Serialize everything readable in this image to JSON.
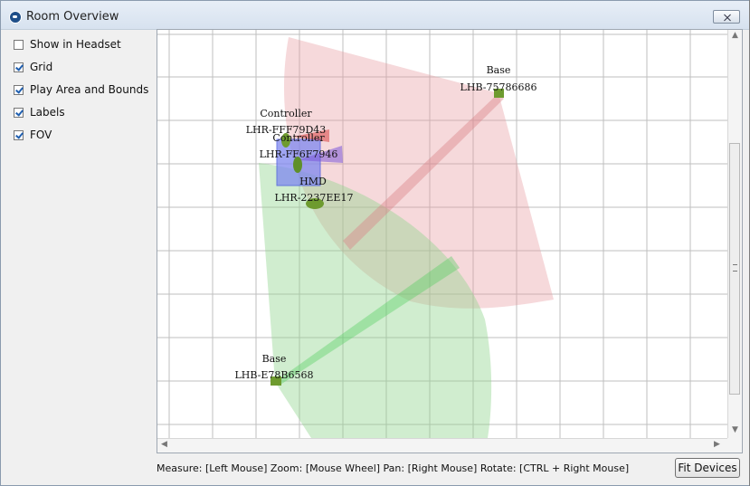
{
  "window": {
    "title": "Room Overview"
  },
  "options": [
    {
      "label": "Show in Headset",
      "checked": false
    },
    {
      "label": "Grid",
      "checked": true
    },
    {
      "label": "Play Area and Bounds",
      "checked": true
    },
    {
      "label": "Labels",
      "checked": true
    },
    {
      "label": "FOV",
      "checked": true
    }
  ],
  "devices": {
    "base_top": {
      "type": "Base",
      "serial": "LHB-75786686"
    },
    "controller_1": {
      "type": "Controller",
      "serial": "LHR-FFF79D43"
    },
    "controller_2": {
      "type": "Controller",
      "serial": "LHR-FF6F7946"
    },
    "hmd": {
      "type": "HMD",
      "serial": "LHR-2237EE17"
    },
    "base_bottom": {
      "type": "Base",
      "serial": "LHB-E78B6568"
    }
  },
  "footer": {
    "hint": "Measure: [Left Mouse]  Zoom: [Mouse Wheel]  Pan: [Right Mouse]  Rotate: [CTRL + Right Mouse]",
    "fit_button": "Fit Devices"
  },
  "colors": {
    "red_fov": "#e79ca0",
    "green_fov": "#8fd58c",
    "play_area": "#7f88f0",
    "device": "#6e9b2f"
  }
}
